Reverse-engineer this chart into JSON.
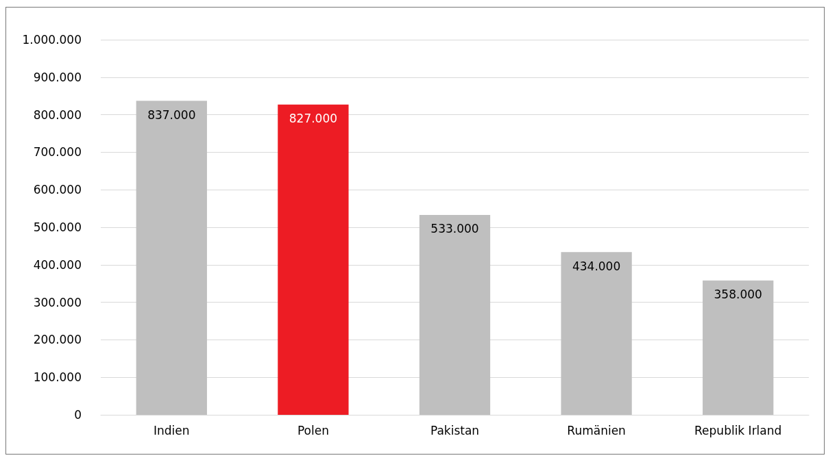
{
  "chart_data": {
    "type": "bar",
    "categories": [
      "Indien",
      "Polen",
      "Pakistan",
      "Rumänien",
      "Republik Irland"
    ],
    "values": [
      837000,
      827000,
      533000,
      434000,
      358000
    ],
    "colors": [
      "#bfbfbf",
      "#ed1c24",
      "#bfbfbf",
      "#bfbfbf",
      "#bfbfbf"
    ],
    "ylim": [
      0,
      1000000
    ],
    "yticks": [
      {
        "value": 0,
        "label": "0"
      },
      {
        "value": 100000,
        "label": "100.000"
      },
      {
        "value": 200000,
        "label": "200.000"
      },
      {
        "value": 300000,
        "label": "300.000"
      },
      {
        "value": 400000,
        "label": "400.000"
      },
      {
        "value": 500000,
        "label": "500.000"
      },
      {
        "value": 600000,
        "label": "600.000"
      },
      {
        "value": 700000,
        "label": "700.000"
      },
      {
        "value": 800000,
        "label": "800.000"
      },
      {
        "value": 900000,
        "label": "900.000"
      },
      {
        "value": 1000000,
        "label": "1.000.000"
      }
    ],
    "value_labels": [
      "837.000",
      "827.000",
      "533.000",
      "434.000",
      "358.000"
    ],
    "grid": "y"
  }
}
